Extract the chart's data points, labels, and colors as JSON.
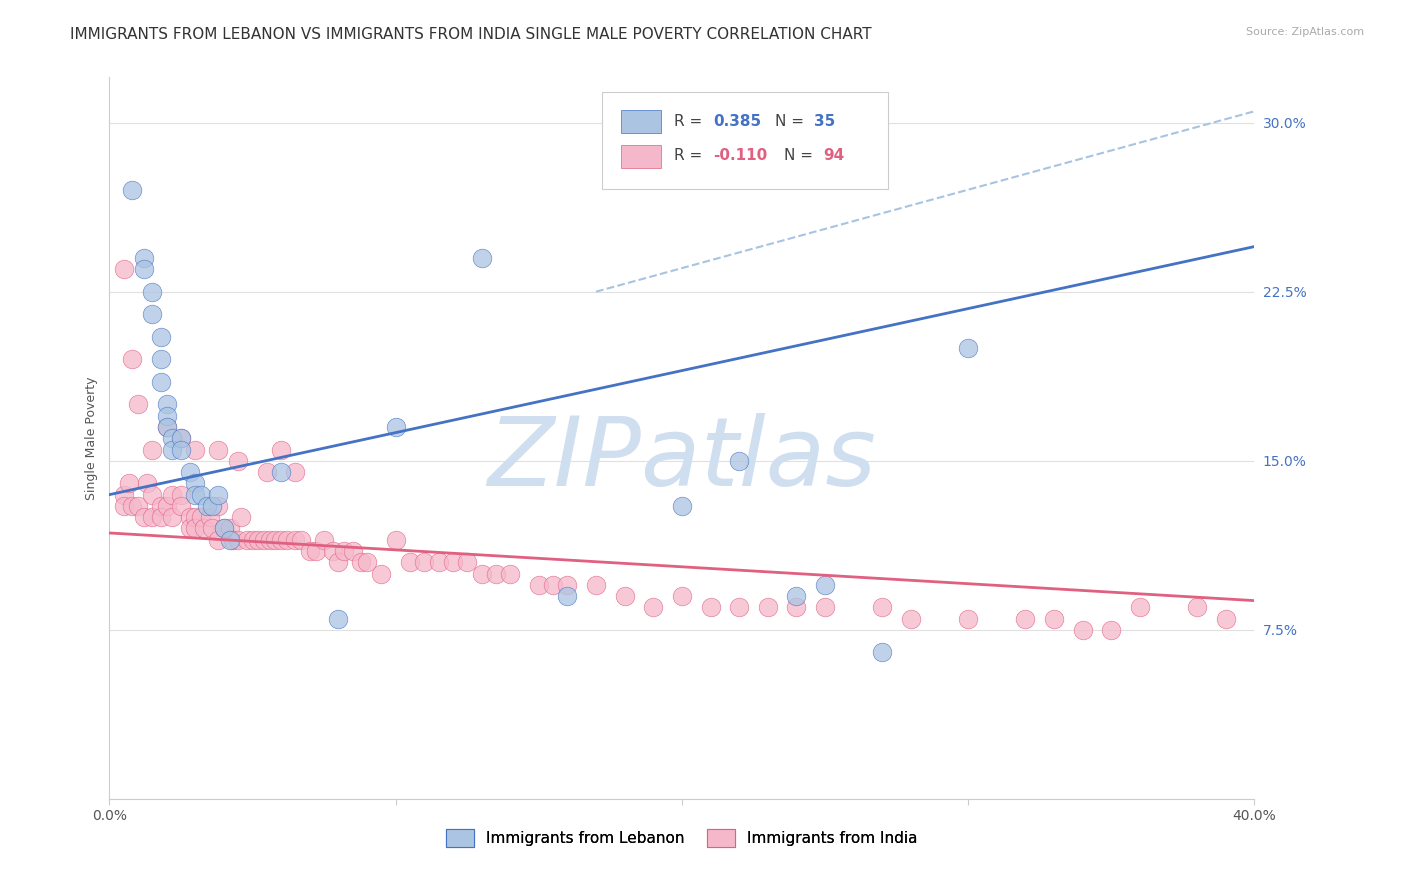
{
  "title": "IMMIGRANTS FROM LEBANON VS IMMIGRANTS FROM INDIA SINGLE MALE POVERTY CORRELATION CHART",
  "source": "Source: ZipAtlas.com",
  "ylabel": "Single Male Poverty",
  "yticks": [
    "7.5%",
    "15.0%",
    "22.5%",
    "30.0%"
  ],
  "ytick_vals": [
    0.075,
    0.15,
    0.225,
    0.3
  ],
  "xlim": [
    0.0,
    0.4
  ],
  "ylim": [
    0.0,
    0.32
  ],
  "r_lebanon": 0.385,
  "n_lebanon": 35,
  "r_india": -0.11,
  "n_india": 94,
  "color_lebanon": "#aac4e2",
  "color_india": "#f5b8ca",
  "line_color_lebanon": "#4472c4",
  "line_color_india": "#e06080",
  "dashed_line_color": "#a8c4e0",
  "background_color": "#ffffff",
  "grid_color": "#e0e0e0",
  "title_fontsize": 11,
  "axis_fontsize": 9,
  "tick_fontsize": 10,
  "right_tick_color": "#4472c4",
  "watermark_color": "#d0dff0",
  "lebanon_x": [
    0.008,
    0.012,
    0.012,
    0.015,
    0.015,
    0.018,
    0.018,
    0.018,
    0.02,
    0.02,
    0.02,
    0.022,
    0.022,
    0.025,
    0.025,
    0.028,
    0.03,
    0.03,
    0.032,
    0.034,
    0.036,
    0.038,
    0.04,
    0.042,
    0.06,
    0.08,
    0.1,
    0.13,
    0.16,
    0.2,
    0.22,
    0.24,
    0.25,
    0.27,
    0.3
  ],
  "lebanon_y": [
    0.27,
    0.24,
    0.235,
    0.225,
    0.215,
    0.205,
    0.195,
    0.185,
    0.175,
    0.17,
    0.165,
    0.16,
    0.155,
    0.16,
    0.155,
    0.145,
    0.14,
    0.135,
    0.135,
    0.13,
    0.13,
    0.135,
    0.12,
    0.115,
    0.145,
    0.08,
    0.165,
    0.24,
    0.09,
    0.13,
    0.15,
    0.09,
    0.095,
    0.065,
    0.2
  ],
  "india_x": [
    0.005,
    0.005,
    0.007,
    0.008,
    0.01,
    0.012,
    0.013,
    0.015,
    0.015,
    0.018,
    0.018,
    0.02,
    0.022,
    0.022,
    0.025,
    0.025,
    0.028,
    0.028,
    0.03,
    0.03,
    0.032,
    0.033,
    0.035,
    0.036,
    0.038,
    0.038,
    0.04,
    0.042,
    0.043,
    0.045,
    0.046,
    0.048,
    0.05,
    0.052,
    0.054,
    0.056,
    0.058,
    0.06,
    0.062,
    0.065,
    0.067,
    0.07,
    0.072,
    0.075,
    0.078,
    0.08,
    0.082,
    0.085,
    0.088,
    0.09,
    0.095,
    0.1,
    0.105,
    0.11,
    0.115,
    0.12,
    0.125,
    0.13,
    0.135,
    0.14,
    0.15,
    0.155,
    0.16,
    0.17,
    0.18,
    0.19,
    0.2,
    0.21,
    0.22,
    0.23,
    0.24,
    0.25,
    0.27,
    0.28,
    0.3,
    0.32,
    0.33,
    0.34,
    0.35,
    0.36,
    0.38,
    0.39,
    0.005,
    0.008,
    0.01,
    0.015,
    0.02,
    0.025,
    0.03,
    0.038,
    0.045,
    0.055,
    0.06,
    0.065
  ],
  "india_y": [
    0.135,
    0.13,
    0.14,
    0.13,
    0.13,
    0.125,
    0.14,
    0.135,
    0.125,
    0.13,
    0.125,
    0.13,
    0.125,
    0.135,
    0.135,
    0.13,
    0.125,
    0.12,
    0.125,
    0.12,
    0.125,
    0.12,
    0.125,
    0.12,
    0.115,
    0.13,
    0.12,
    0.12,
    0.115,
    0.115,
    0.125,
    0.115,
    0.115,
    0.115,
    0.115,
    0.115,
    0.115,
    0.115,
    0.115,
    0.115,
    0.115,
    0.11,
    0.11,
    0.115,
    0.11,
    0.105,
    0.11,
    0.11,
    0.105,
    0.105,
    0.1,
    0.115,
    0.105,
    0.105,
    0.105,
    0.105,
    0.105,
    0.1,
    0.1,
    0.1,
    0.095,
    0.095,
    0.095,
    0.095,
    0.09,
    0.085,
    0.09,
    0.085,
    0.085,
    0.085,
    0.085,
    0.085,
    0.085,
    0.08,
    0.08,
    0.08,
    0.08,
    0.075,
    0.075,
    0.085,
    0.085,
    0.08,
    0.235,
    0.195,
    0.175,
    0.155,
    0.165,
    0.16,
    0.155,
    0.155,
    0.15,
    0.145,
    0.155,
    0.145
  ],
  "leb_line_x0": 0.0,
  "leb_line_y0": 0.135,
  "leb_line_x1": 0.4,
  "leb_line_y1": 0.245,
  "ind_line_x0": 0.0,
  "ind_line_y0": 0.118,
  "ind_line_x1": 0.4,
  "ind_line_y1": 0.088,
  "dash_line_x0": 0.17,
  "dash_line_y0": 0.225,
  "dash_line_x1": 0.4,
  "dash_line_y1": 0.305
}
